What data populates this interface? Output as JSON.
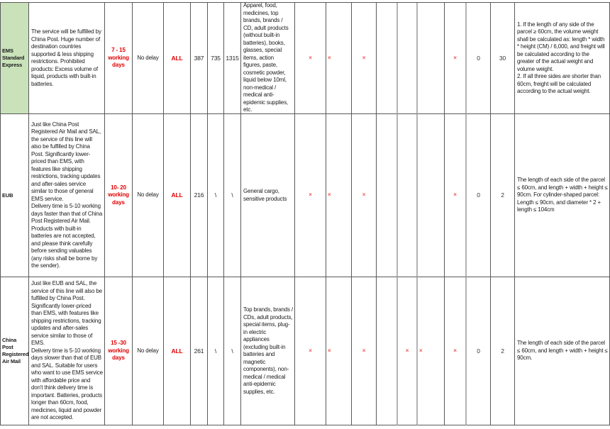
{
  "colors": {
    "highlight_green": "#c9e2ba",
    "red_text": "#e00000",
    "mark_red": "#ef5a54",
    "gridline": "#595959"
  },
  "table": {
    "rows": [
      {
        "name": "EMS Standard Express",
        "name_highlighted": true,
        "description": [
          "The service will be fulfilled by China Post. Huge number of destination countries supported & less shipping restrictions. Prohibited products: Excess volume of liquid, products with built-in batteries."
        ],
        "delivery_time": "7 - 15 working days",
        "delay": "No delay",
        "scope": "ALL",
        "values": [
          "387",
          "735",
          "1315"
        ],
        "products": "Apparel, food, medicines, top brands, brands / CD, adult products (without built-in batteries), books, glasses, special items, action figures, paste, cosmetic powder, liquid below 10ml, non-medical / medical anti-epidemic supplies, etc.",
        "marks": [
          "×",
          "×",
          "×",
          "",
          "",
          "",
          "×",
          "0",
          "30"
        ],
        "note": [
          "1. If the length of any side of the parcel ≥ 60cm, the volume weight shall be calculated as: length * width * height (CM) / 6,000, and freight will be calculated according to the greater of the actual weight and volume weight.",
          "2. If all three sides are shorter than 60cm, freight will be calculated according to the actual weight."
        ]
      },
      {
        "name": "EUB",
        "name_highlighted": false,
        "description": [
          "Just like China Post Registered Air Mail and SAL, the service of this line will also be fulfilled by China Post. Significantly lower-priced than EMS, with features like shipping restrictions, tracking updates and after-sales service similar to those of general EMS service.",
          "Delivery time is 5-10 working days faster than that of China Post Registered Air Mail. Products with built-in batteries are not accepted, and please think carefully before sending valuables (any risks shall be borne by the sender)."
        ],
        "delivery_time": "10- 20 working days",
        "delay": "No delay",
        "scope": "ALL",
        "values": [
          "216",
          "\\",
          "\\"
        ],
        "products": "General cargo, sensitive products",
        "marks": [
          "×",
          "×",
          "×",
          "",
          "",
          "",
          "×",
          "0",
          "2"
        ],
        "note": [
          "The length of each side of the parcel ≤ 60cm, and length + width + height ≤ 90cm. For cylinder-shaped parcel: Length ≤ 90cm, and diameter * 2 + length ≤ 104cm"
        ]
      },
      {
        "name": "China Post Registered Air Mail",
        "name_highlighted": false,
        "description": [
          "Just like EUB and SAL, the service of this line will also be fulfilled by China Post. Significantly lower-priced than EMS, with features like shipping restrictions, tracking updates and after-sales service similar to those of EMS.",
          "Delivery time is 5-10 working days slower than that of EUB and SAL. Suitable for users who want to use EMS service with affordable price and don't think delivery time is important. Batteries, products longer than 60cm, food, medicines, liquid and powder are not accepted."
        ],
        "delivery_time": "15 -30 working days",
        "delay": "No delay",
        "scope": "ALL",
        "values": [
          "261",
          "\\",
          "\\"
        ],
        "products": "Top brands, brands / CDs, adult products, special items, plug-in electric appliances (excluding built-in batteries and magnetic components), non-medical / medical anti-epidemic supplies, etc.",
        "marks": [
          "×",
          "×",
          "×",
          "",
          "×",
          "×",
          "×",
          "0",
          "2"
        ],
        "note": [
          "The length of each side of the parcel ≤ 60cm, and length + width + height ≤ 90cm."
        ]
      }
    ]
  }
}
